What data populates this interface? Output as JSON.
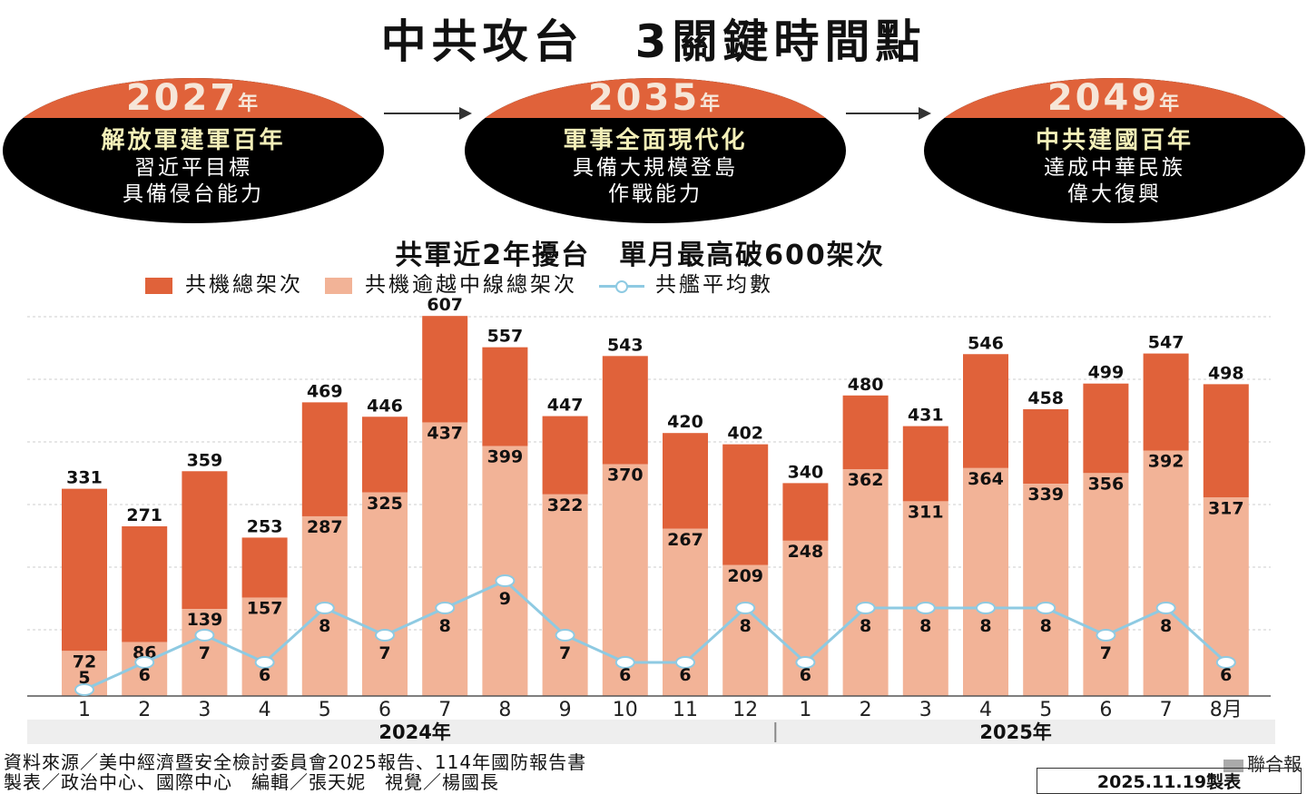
{
  "title": "中共攻台　3關鍵時間點",
  "milestones": [
    {
      "year": "2027",
      "unit": "年",
      "headline": "解放軍建軍百年",
      "line1": "習近平目標",
      "line2": "具備侵台能力"
    },
    {
      "year": "2035",
      "unit": "年",
      "headline": "軍事全面現代化",
      "line1": "具備大規模登島",
      "line2": "作戰能力"
    },
    {
      "year": "2049",
      "unit": "年",
      "headline": "中共建國百年",
      "line1": "達成中華民族",
      "line2": "偉大復興"
    }
  ],
  "colors": {
    "total": "#e0623a",
    "crossing": "#f2b397",
    "ships": "#8ecae2",
    "circle": "#000000"
  },
  "chart_data": {
    "type": "bar",
    "title": "共軍近2年擾台　單月最高破600架次",
    "legend": [
      "共機總架次",
      "共機逾越中線總架次",
      "共艦平均數"
    ],
    "categories": [
      "1",
      "2",
      "3",
      "4",
      "5",
      "6",
      "7",
      "8",
      "9",
      "10",
      "11",
      "12",
      "1",
      "2",
      "3",
      "4",
      "5",
      "6",
      "7",
      "8月"
    ],
    "year_groups": [
      {
        "label": "2024年",
        "months": 12
      },
      {
        "label": "2025年",
        "months": 8
      }
    ],
    "ylim": [
      0,
      600
    ],
    "grid": true,
    "series": [
      {
        "name": "共機總架次",
        "type": "bar",
        "values": [
          331,
          271,
          359,
          253,
          469,
          446,
          607,
          557,
          447,
          543,
          420,
          402,
          340,
          480,
          431,
          546,
          458,
          499,
          547,
          498
        ]
      },
      {
        "name": "共機逾越中線總架次",
        "type": "bar",
        "values": [
          72,
          86,
          139,
          157,
          287,
          325,
          437,
          399,
          322,
          370,
          267,
          209,
          248,
          362,
          311,
          364,
          339,
          356,
          392,
          317
        ]
      },
      {
        "name": "共艦平均數",
        "type": "line",
        "values": [
          5,
          6,
          7,
          6,
          8,
          7,
          8,
          9,
          7,
          6,
          6,
          8,
          6,
          8,
          8,
          8,
          8,
          7,
          8,
          6
        ]
      }
    ]
  },
  "footer": {
    "source": "資料來源／美中經濟暨安全檢討委員會2025報告、114年國防報告書",
    "credits": "製表／政治中心、國際中心　編輯／張天妮　視覺／楊國長",
    "brand": "聯合報",
    "date": "2025.11.19製表"
  }
}
